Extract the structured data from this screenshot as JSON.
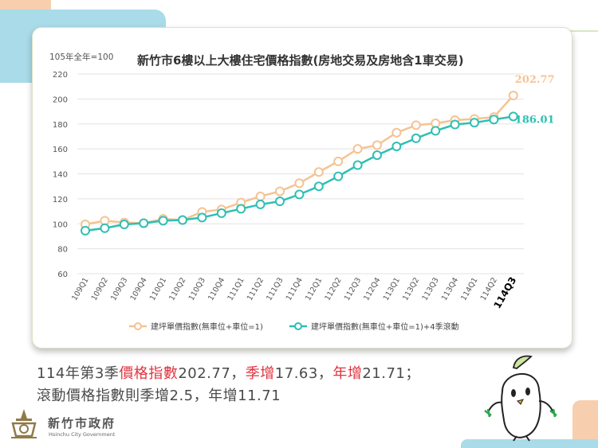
{
  "chart_data": {
    "type": "line",
    "title": "新竹市6樓以上大樓住宅價格指數(房地交易及房地含1車交易)",
    "y_unit_label": "105年全年=100",
    "ylim": [
      60,
      220
    ],
    "yticks": [
      60,
      80,
      100,
      120,
      140,
      160,
      180,
      200,
      220
    ],
    "grid": true,
    "legend_position": "bottom",
    "categories": [
      "109Q1",
      "109Q2",
      "109Q3",
      "109Q4",
      "110Q1",
      "110Q2",
      "110Q3",
      "110Q4",
      "111Q1",
      "111Q2",
      "111Q3",
      "111Q4",
      "112Q1",
      "112Q2",
      "112Q3",
      "112Q4",
      "113Q1",
      "113Q2",
      "113Q3",
      "113Q4",
      "114Q1",
      "114Q2",
      "114Q3"
    ],
    "highlight_category": "114Q3",
    "series": [
      {
        "name": "建坪單價指數(無車位+車位=1)",
        "color": "#f5c392",
        "end_label": "202.77",
        "values": [
          99.5,
          102.5,
          101.0,
          100.5,
          104.0,
          103.0,
          109.5,
          111.5,
          117.0,
          122.0,
          126.0,
          132.5,
          141.5,
          150.0,
          160.0,
          163.0,
          173.0,
          179.0,
          180.5,
          183.0,
          184.0,
          185.5,
          202.77
        ]
      },
      {
        "name": "建坪單價指數(無車位+車位=1)+4季滾動",
        "color": "#2fbfb3",
        "end_label": "186.01",
        "values": [
          94.5,
          96.5,
          99.5,
          100.5,
          102.5,
          103.0,
          105.0,
          108.5,
          112.0,
          115.5,
          118.0,
          123.5,
          130.0,
          138.0,
          147.0,
          155.0,
          162.0,
          168.5,
          174.5,
          179.5,
          181.0,
          183.5,
          186.01
        ]
      }
    ]
  },
  "summary": {
    "l1_a": "114年第3季",
    "l1_b": "價格指數",
    "l1_c": "202.77，",
    "l1_d": "季增",
    "l1_e": "17.63，",
    "l1_f": "年增",
    "l1_g": "21.71；",
    "line2": "滾動價格指數則季增2.5，年增11.71"
  },
  "footer": {
    "gov_name": "新竹市政府",
    "gov_name_en": "Hsinchu City Government"
  },
  "colors": {
    "accent_red": "#e0343f",
    "deco_orange": "#f7cfae",
    "deco_blue": "#a9dbe8"
  }
}
